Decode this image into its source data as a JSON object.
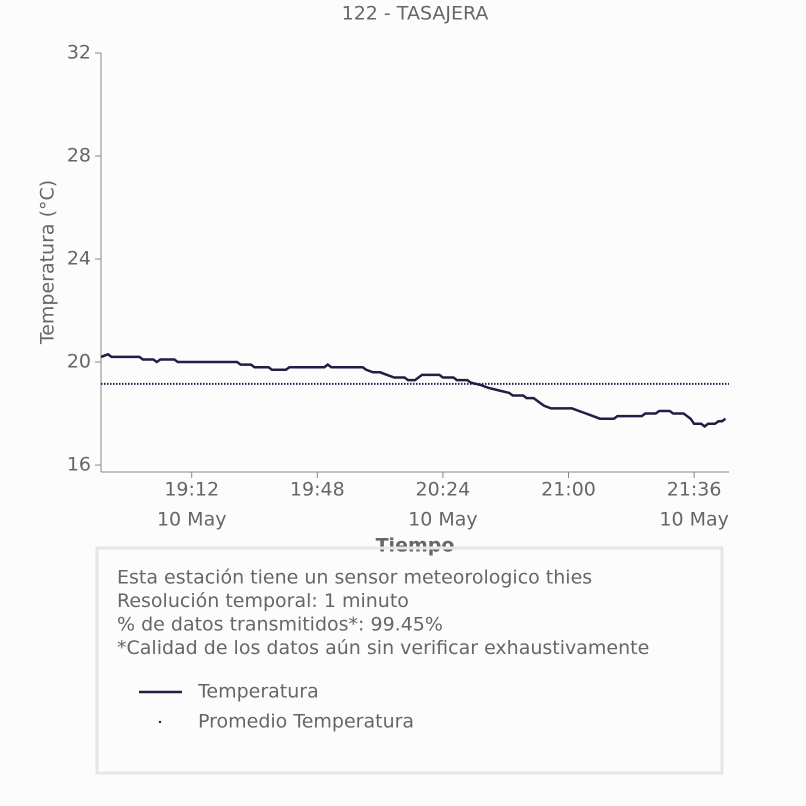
{
  "chart_data": {
    "type": "line",
    "title": "122 - TASAJERA",
    "xlabel": "Tiempo",
    "ylabel": "Temperatura (°C)",
    "xlim": [
      "18:46",
      "21:46"
    ],
    "ylim": [
      15.73,
      32
    ],
    "xticks": [
      "19:12",
      "19:48",
      "20:24",
      "21:00",
      "21:36"
    ],
    "xtick_sublabels": [
      "10 May",
      null,
      "10 May",
      null,
      "10 May"
    ],
    "yticks": [
      16,
      20,
      24,
      28,
      32
    ],
    "series": [
      {
        "name": "Temperatura",
        "color": "#1f1f45",
        "style": "solid",
        "x": [
          "18:46",
          "18:48",
          "18:49",
          "18:57",
          "18:58",
          "19:01",
          "19:02",
          "19:03",
          "19:07",
          "19:08",
          "19:25",
          "19:26",
          "19:29",
          "19:30",
          "19:34",
          "19:35",
          "19:39",
          "19:40",
          "19:50",
          "19:51",
          "19:52",
          "20:01",
          "20:02",
          "20:04",
          "20:06",
          "20:08",
          "20:10",
          "20:13",
          "20:14",
          "20:16",
          "20:17",
          "20:18",
          "20:23",
          "20:24",
          "20:27",
          "20:28",
          "20:31",
          "20:32",
          "20:35",
          "20:37",
          "20:40",
          "20:43",
          "20:44",
          "20:47",
          "20:48",
          "20:50",
          "20:52",
          "20:53",
          "20:55",
          "21:01",
          "21:03",
          "21:05",
          "21:07",
          "21:09",
          "21:13",
          "21:14",
          "21:21",
          "21:22",
          "21:25",
          "21:26",
          "21:29",
          "21:30",
          "21:33",
          "21:35",
          "21:36",
          "21:38",
          "21:39",
          "21:40",
          "21:42",
          "21:43",
          "21:44",
          "21:45"
        ],
        "values": [
          20.2,
          20.3,
          20.2,
          20.2,
          20.1,
          20.1,
          20.0,
          20.1,
          20.1,
          20.0,
          20.0,
          19.9,
          19.9,
          19.8,
          19.8,
          19.7,
          19.7,
          19.8,
          19.8,
          19.9,
          19.8,
          19.8,
          19.7,
          19.6,
          19.6,
          19.5,
          19.4,
          19.4,
          19.3,
          19.3,
          19.4,
          19.5,
          19.5,
          19.4,
          19.4,
          19.3,
          19.3,
          19.2,
          19.1,
          19.0,
          18.9,
          18.8,
          18.7,
          18.7,
          18.6,
          18.6,
          18.4,
          18.3,
          18.2,
          18.2,
          18.1,
          18.0,
          17.9,
          17.8,
          17.8,
          17.9,
          17.9,
          18.0,
          18.0,
          18.1,
          18.1,
          18.0,
          18.0,
          17.8,
          17.6,
          17.6,
          17.5,
          17.6,
          17.6,
          17.7,
          17.7,
          17.8
        ]
      },
      {
        "name": "Promedio Temperatura",
        "color": "#1f1f45",
        "style": "dotted",
        "x": [
          "18:46",
          "21:46"
        ],
        "values": [
          19.15,
          19.15
        ]
      }
    ],
    "annotations": [
      "Esta estación tiene un sensor meteorologico thies",
      "Resolución temporal: 1 minuto",
      "% de datos transmitidos*: 99.45%",
      "*Calidad de los datos aún sin verificar exhaustivamente"
    ]
  }
}
